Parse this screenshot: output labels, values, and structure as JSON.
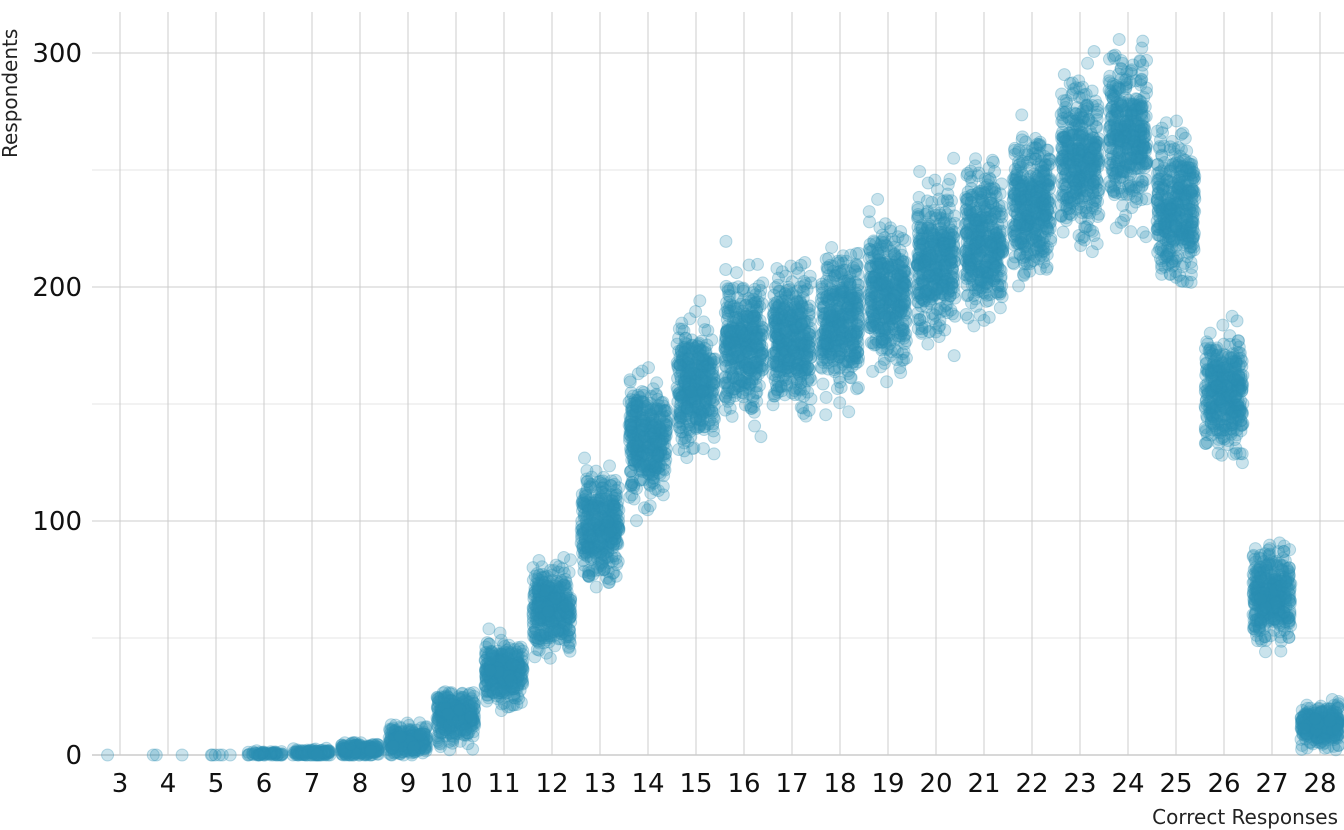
{
  "chart_data": {
    "type": "scatter",
    "title": "",
    "xlabel": "Correct Responses",
    "ylabel": "Respondents",
    "x_ticks": [
      "3",
      "4",
      "5",
      "6",
      "7",
      "8",
      "9",
      "10",
      "11",
      "12",
      "13",
      "14",
      "15",
      "16",
      "17",
      "18",
      "19",
      "20",
      "21",
      "22",
      "23",
      "24",
      "25",
      "26",
      "27",
      "28"
    ],
    "y_ticks": [
      "0",
      "100",
      "200",
      "300"
    ],
    "ylim": [
      0,
      315
    ],
    "grid": true,
    "point_color": "#2a90b3",
    "point_opacity": 0.25,
    "jittered_groups": [
      {
        "x": 3,
        "mean": 0,
        "sd": 0,
        "n": 1
      },
      {
        "x": 4,
        "mean": 0,
        "sd": 0,
        "n": 3
      },
      {
        "x": 5,
        "mean": 0,
        "sd": 0,
        "n": 6
      },
      {
        "x": 6,
        "mean": 0.5,
        "sd": 0.6,
        "n": 60
      },
      {
        "x": 7,
        "mean": 1,
        "sd": 0.8,
        "n": 120
      },
      {
        "x": 8,
        "mean": 2,
        "sd": 1.5,
        "n": 200
      },
      {
        "x": 9,
        "mean": 6,
        "sd": 2.8,
        "n": 300
      },
      {
        "x": 10,
        "mean": 17,
        "sd": 5,
        "n": 350
      },
      {
        "x": 11,
        "mean": 35,
        "sd": 6,
        "n": 380
      },
      {
        "x": 12,
        "mean": 63,
        "sd": 8,
        "n": 400
      },
      {
        "x": 13,
        "mean": 98,
        "sd": 10,
        "n": 400
      },
      {
        "x": 14,
        "mean": 135,
        "sd": 11,
        "n": 400
      },
      {
        "x": 15,
        "mean": 158,
        "sd": 12,
        "n": 400
      },
      {
        "x": 16,
        "mean": 175,
        "sd": 13,
        "n": 400
      },
      {
        "x": 17,
        "mean": 178,
        "sd": 13,
        "n": 400
      },
      {
        "x": 18,
        "mean": 186,
        "sd": 13,
        "n": 400
      },
      {
        "x": 19,
        "mean": 197,
        "sd": 14,
        "n": 400
      },
      {
        "x": 20,
        "mean": 210,
        "sd": 14,
        "n": 400
      },
      {
        "x": 21,
        "mean": 220,
        "sd": 14,
        "n": 400
      },
      {
        "x": 22,
        "mean": 235,
        "sd": 14,
        "n": 400
      },
      {
        "x": 23,
        "mean": 255,
        "sd": 15,
        "n": 400
      },
      {
        "x": 24,
        "mean": 265,
        "sd": 15,
        "n": 400
      },
      {
        "x": 25,
        "mean": 235,
        "sd": 14,
        "n": 400
      },
      {
        "x": 26,
        "mean": 155,
        "sd": 12,
        "n": 400
      },
      {
        "x": 27,
        "mean": 68,
        "sd": 9,
        "n": 400
      },
      {
        "x": 28,
        "mean": 13,
        "sd": 4,
        "n": 350
      }
    ]
  }
}
